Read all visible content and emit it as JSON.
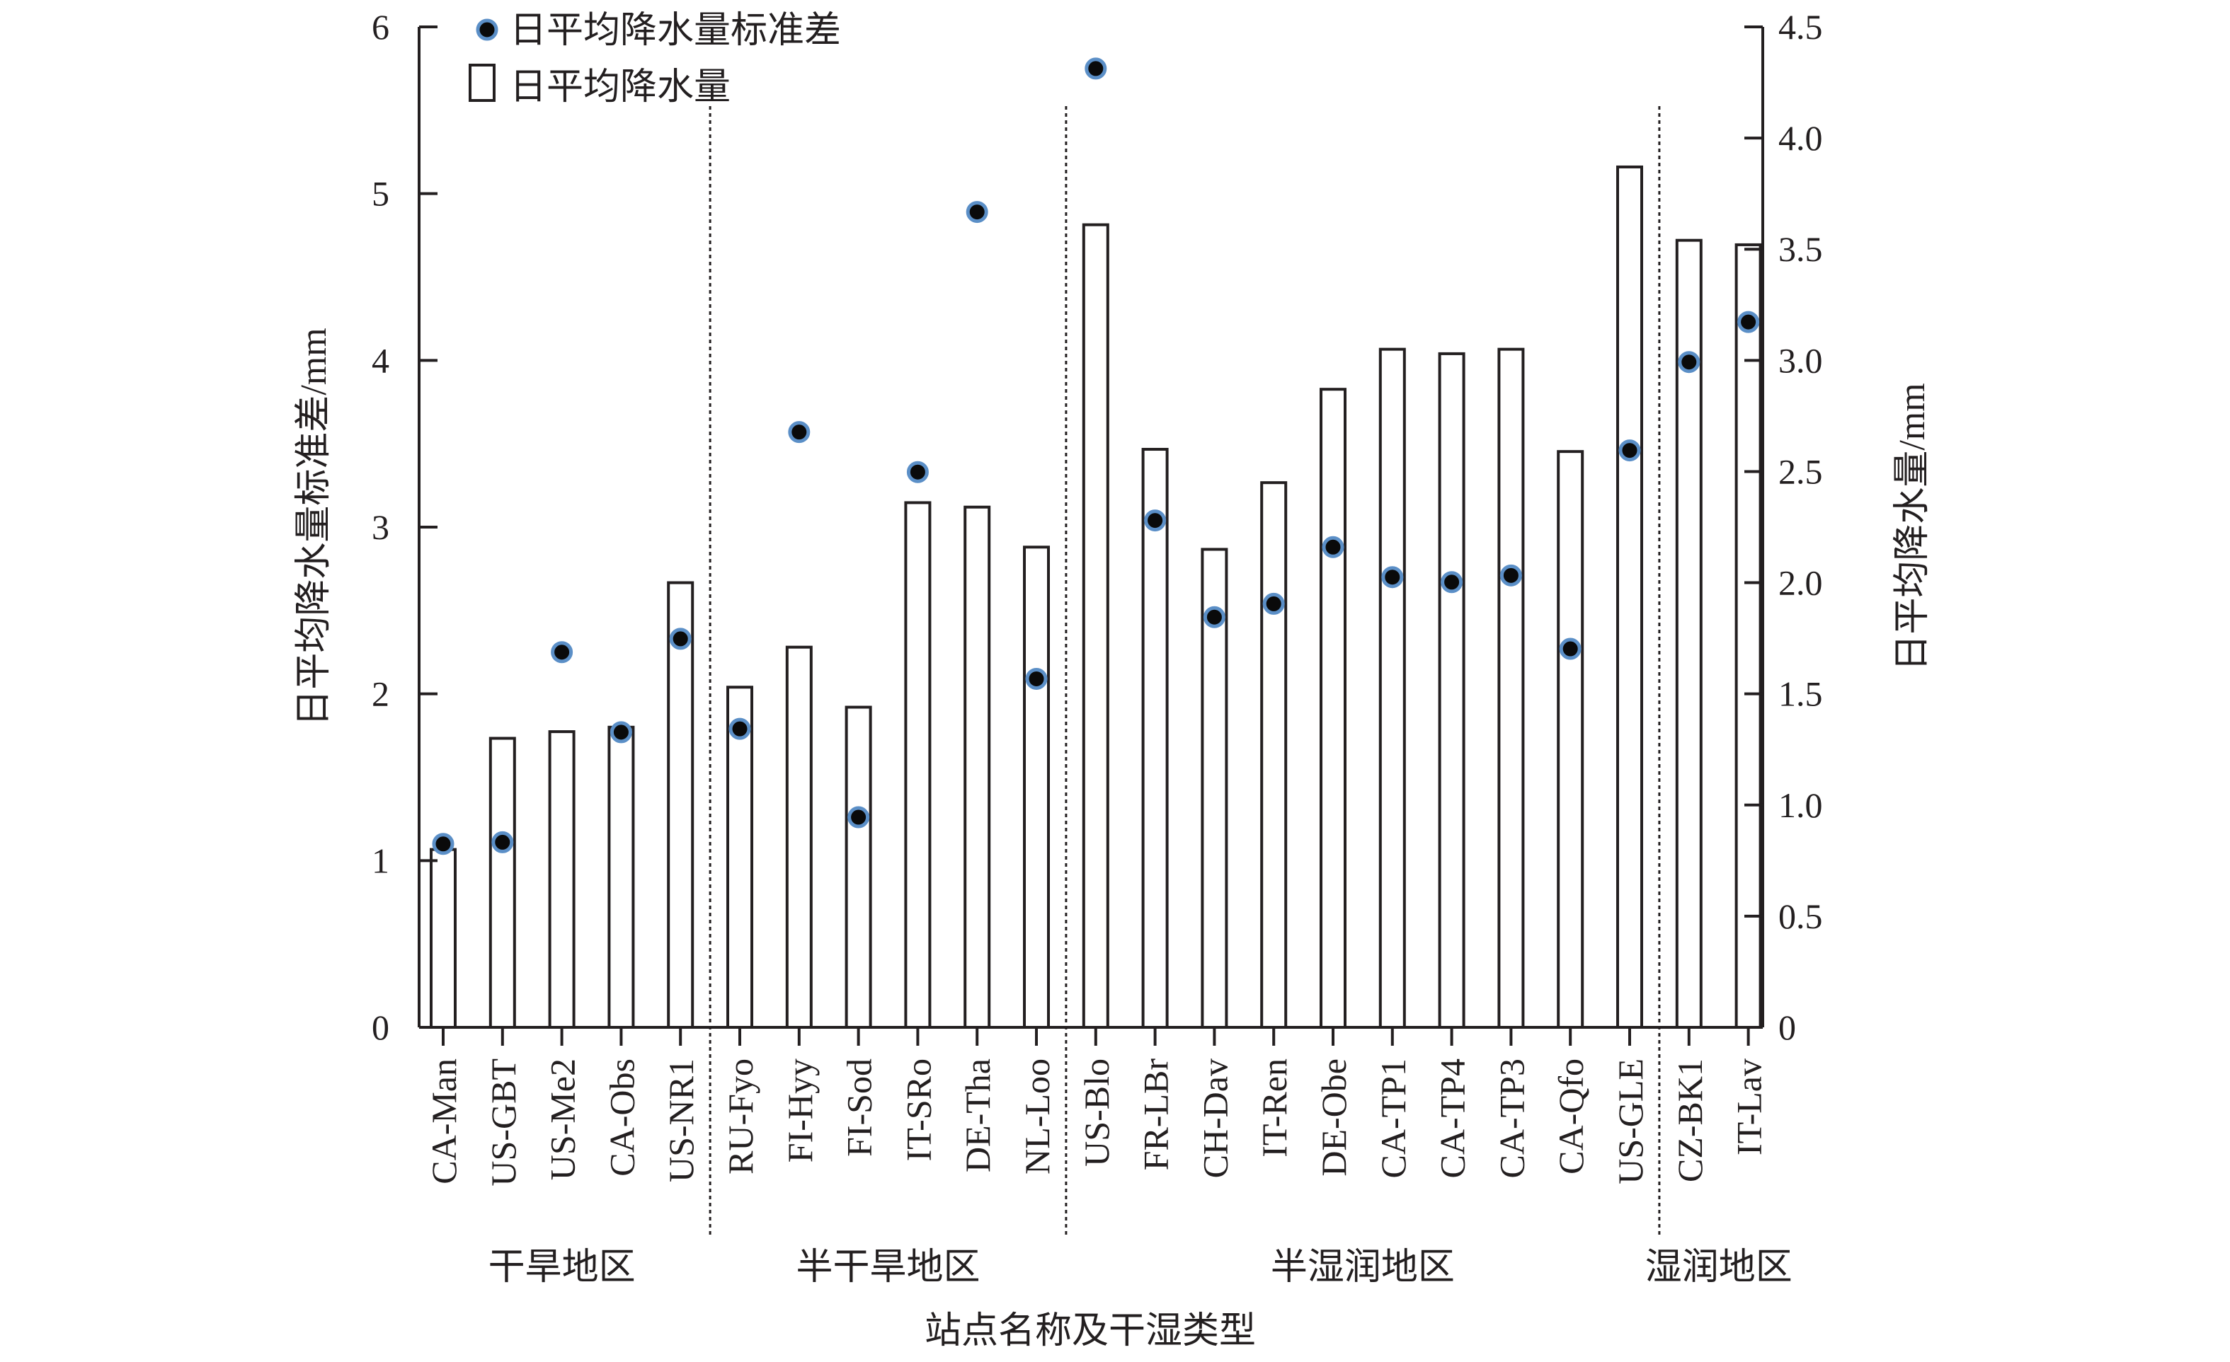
{
  "chart_data": {
    "type": "bar",
    "title": "",
    "xlabel": "站点名称及干湿类型",
    "ylabel_left": "日平均降水量标准差/mm",
    "ylabel_right": "日平均降水量/mm",
    "ylim_left": [
      0,
      6
    ],
    "ylim_right": [
      0,
      4.5
    ],
    "yticks_left": [
      "0",
      "1",
      "2",
      "3",
      "4",
      "5",
      "6"
    ],
    "yticks_right": [
      "0",
      "0.5",
      "1.0",
      "1.5",
      "2.0",
      "2.5",
      "3.0",
      "3.5",
      "4.0",
      "4.5"
    ],
    "grid": false,
    "legend_position": "top-left",
    "categories": [
      "CA-Man",
      "US-GBT",
      "US-Me2",
      "CA-Obs",
      "US-NR1",
      "RU-Fyo",
      "FI-Hyy",
      "FI-Sod",
      "IT-SRo",
      "DE-Tha",
      "NL-Loo",
      "US-Blo",
      "FR-LBr",
      "CH-Dav",
      "IT-Ren",
      "DE-Obe",
      "CA-TP1",
      "CA-TP4",
      "CA-TP3",
      "CA-Qfo",
      "US-GLE",
      "CZ-BK1",
      "IT-Lav"
    ],
    "series": [
      {
        "name": "日平均降水量",
        "kind": "bar",
        "axis": "right",
        "color": "#ffffff",
        "edge_color": "#231f20",
        "values": [
          0.8,
          1.3,
          1.33,
          1.35,
          2.0,
          1.53,
          1.71,
          1.44,
          2.36,
          2.34,
          2.16,
          3.61,
          2.6,
          2.15,
          2.45,
          2.87,
          3.05,
          3.03,
          3.05,
          2.59,
          3.87,
          3.54,
          3.52
        ]
      },
      {
        "name": "日平均降水量标准差",
        "kind": "scatter",
        "axis": "left",
        "color": "#0a0a0a",
        "edge_color": "#5b8fc7",
        "values": [
          1.1,
          1.11,
          2.25,
          1.77,
          2.33,
          1.79,
          3.57,
          1.26,
          3.33,
          4.89,
          2.09,
          5.75,
          3.04,
          2.46,
          2.54,
          2.88,
          2.7,
          2.67,
          2.71,
          2.27,
          3.46,
          3.99,
          4.23
        ]
      }
    ],
    "regions": [
      {
        "label": "干旱地区",
        "from": 0,
        "to": 4
      },
      {
        "label": "半干旱地区",
        "from": 5,
        "to": 10
      },
      {
        "label": "半湿润地区",
        "from": 11,
        "to": 20
      },
      {
        "label": "湿润地区",
        "from": 21,
        "to": 22
      }
    ]
  }
}
